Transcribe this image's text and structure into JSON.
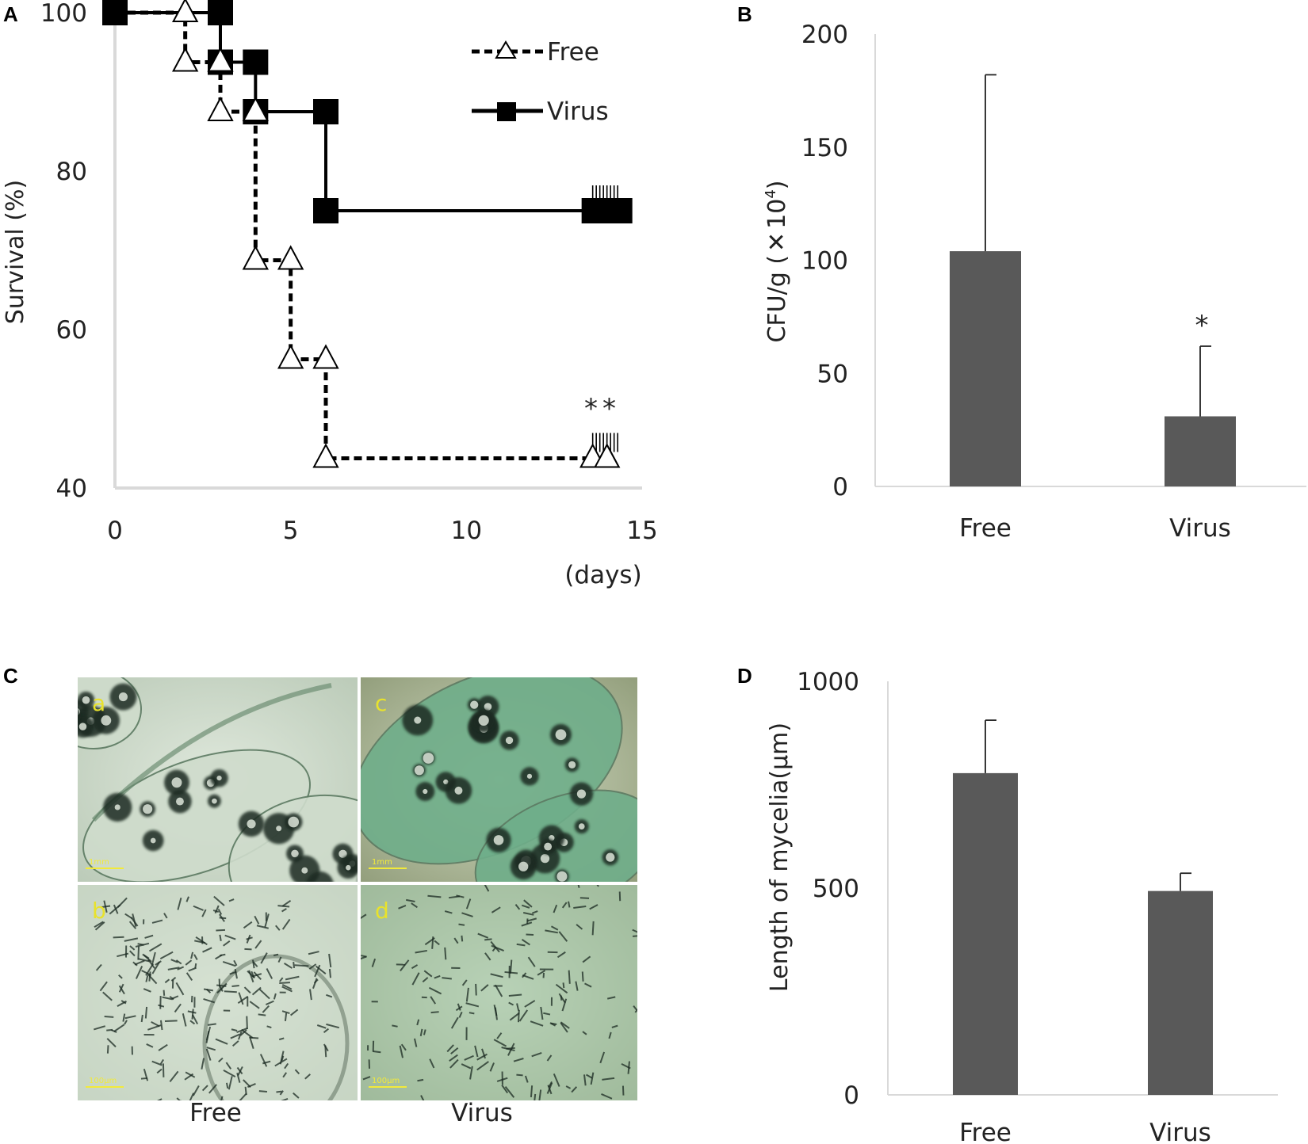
{
  "panels": {
    "A": "A",
    "B": "B",
    "C": "C",
    "D": "D"
  },
  "chart_data": [
    {
      "panel": "A",
      "type": "line",
      "step": true,
      "title": "",
      "xlabel": "(days)",
      "ylabel": "Survival (%)",
      "xlim": [
        0,
        15
      ],
      "ylim": [
        40,
        100
      ],
      "xticks": [
        "0",
        "5",
        "10",
        "15"
      ],
      "yticks": [
        "40",
        "60",
        "80",
        "100"
      ],
      "grid": false,
      "legend_position": "top-right",
      "series": [
        {
          "name": "Free",
          "style": "dashed-triangle-open",
          "color": "#000000",
          "points": [
            [
              0,
              100
            ],
            [
              2,
              100
            ],
            [
              2,
              93.75
            ],
            [
              3,
              93.75
            ],
            [
              3,
              87.5
            ],
            [
              4,
              87.5
            ],
            [
              4,
              68.75
            ],
            [
              5,
              68.75
            ],
            [
              5,
              56.25
            ],
            [
              6,
              56.25
            ],
            [
              6,
              43.75
            ],
            [
              14,
              43.75
            ]
          ]
        },
        {
          "name": "Virus",
          "style": "solid-square-filled",
          "color": "#000000",
          "points": [
            [
              0,
              100
            ],
            [
              3,
              100
            ],
            [
              3,
              93.75
            ],
            [
              4,
              93.75
            ],
            [
              4,
              87.5
            ],
            [
              6,
              87.5
            ],
            [
              6,
              75
            ],
            [
              14,
              75
            ]
          ]
        }
      ],
      "annotation": "**"
    },
    {
      "panel": "B",
      "type": "bar",
      "title": "",
      "xlabel": "",
      "ylabel": "CFU/g (×10⁴)",
      "ylabel_main": "CFU/g (",
      "ylabel_times": "✕",
      "ylabel_base": "10",
      "ylabel_exp": "4",
      "ylabel_close": ")",
      "categories": [
        "Free",
        "Virus"
      ],
      "values": [
        104,
        31
      ],
      "errors": [
        78,
        31
      ],
      "ylim": [
        0,
        200
      ],
      "yticks": [
        "0",
        "50",
        "100",
        "150",
        "200"
      ],
      "bar_color": "#595959",
      "annotation": "*"
    },
    {
      "panel": "D",
      "type": "bar",
      "title": "",
      "xlabel": "",
      "ylabel": "Length of mycelia(μm)",
      "categories": [
        "Free",
        "Virus"
      ],
      "values": [
        778,
        493
      ],
      "errors": [
        128,
        43
      ],
      "ylim": [
        0,
        1000
      ],
      "yticks": [
        "0",
        "500",
        "1000"
      ],
      "bar_color": "#595959"
    }
  ],
  "micrographs": {
    "tiles": [
      {
        "label": "a",
        "scale": "1mm",
        "tone": "light"
      },
      {
        "label": "c",
        "scale": "1mm",
        "tone": "green"
      },
      {
        "label": "b",
        "scale": "100μm",
        "tone": "light"
      },
      {
        "label": "d",
        "scale": "100μm",
        "tone": "green"
      }
    ],
    "captions": [
      "Free",
      "Virus"
    ],
    "stain_colors": {
      "light": "#cfdccc",
      "green": "#6fae8a",
      "dark": "#1b2a22"
    }
  }
}
